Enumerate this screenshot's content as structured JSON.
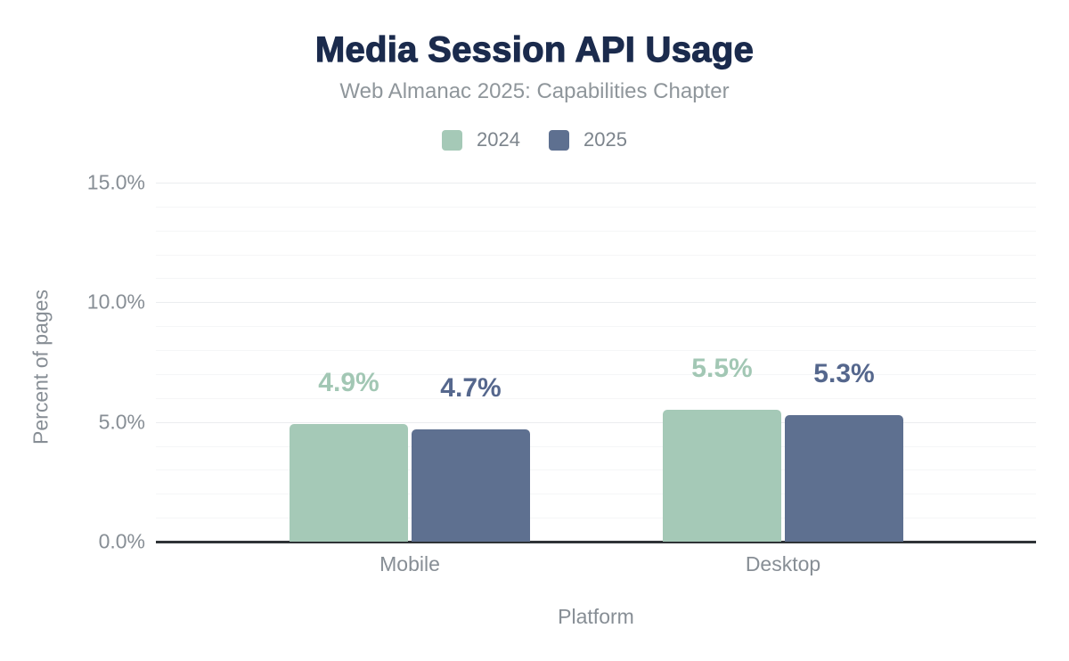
{
  "chart_data": {
    "type": "bar",
    "title": "Media Session API Usage",
    "subtitle": "Web Almanac 2025: Capabilities Chapter",
    "categories": [
      "Mobile",
      "Desktop"
    ],
    "series": [
      {
        "name": "2024",
        "color": "#a5c9b7",
        "label_color": "#a2c7b4",
        "values": [
          4.9,
          5.5
        ],
        "labels": [
          "4.9%",
          "5.5%"
        ]
      },
      {
        "name": "2025",
        "color": "#5e7090",
        "label_color": "#55678d",
        "values": [
          4.7,
          5.3
        ],
        "labels": [
          "4.7%",
          "5.3%"
        ]
      }
    ],
    "xlabel": "Platform",
    "ylabel": "Percent of pages",
    "ylim": [
      0,
      15
    ],
    "yticks": [
      {
        "value": 0,
        "label": "0.0%"
      },
      {
        "value": 5,
        "label": "5.0%"
      },
      {
        "value": 10,
        "label": "10.0%"
      },
      {
        "value": 15,
        "label": "15.0%"
      }
    ],
    "minor_tick_step": 1,
    "major_tick_step": 5,
    "legend_position": "top",
    "grid": "horizontal",
    "colors": {
      "title": "#1b2b4d",
      "subtitle": "#8f969b",
      "axis_text": "#878e95",
      "legend_text": "#7c848c",
      "axis_line": "#2f3337",
      "grid_major": "#ebedef",
      "grid_minor": "#f5f6f7"
    }
  }
}
